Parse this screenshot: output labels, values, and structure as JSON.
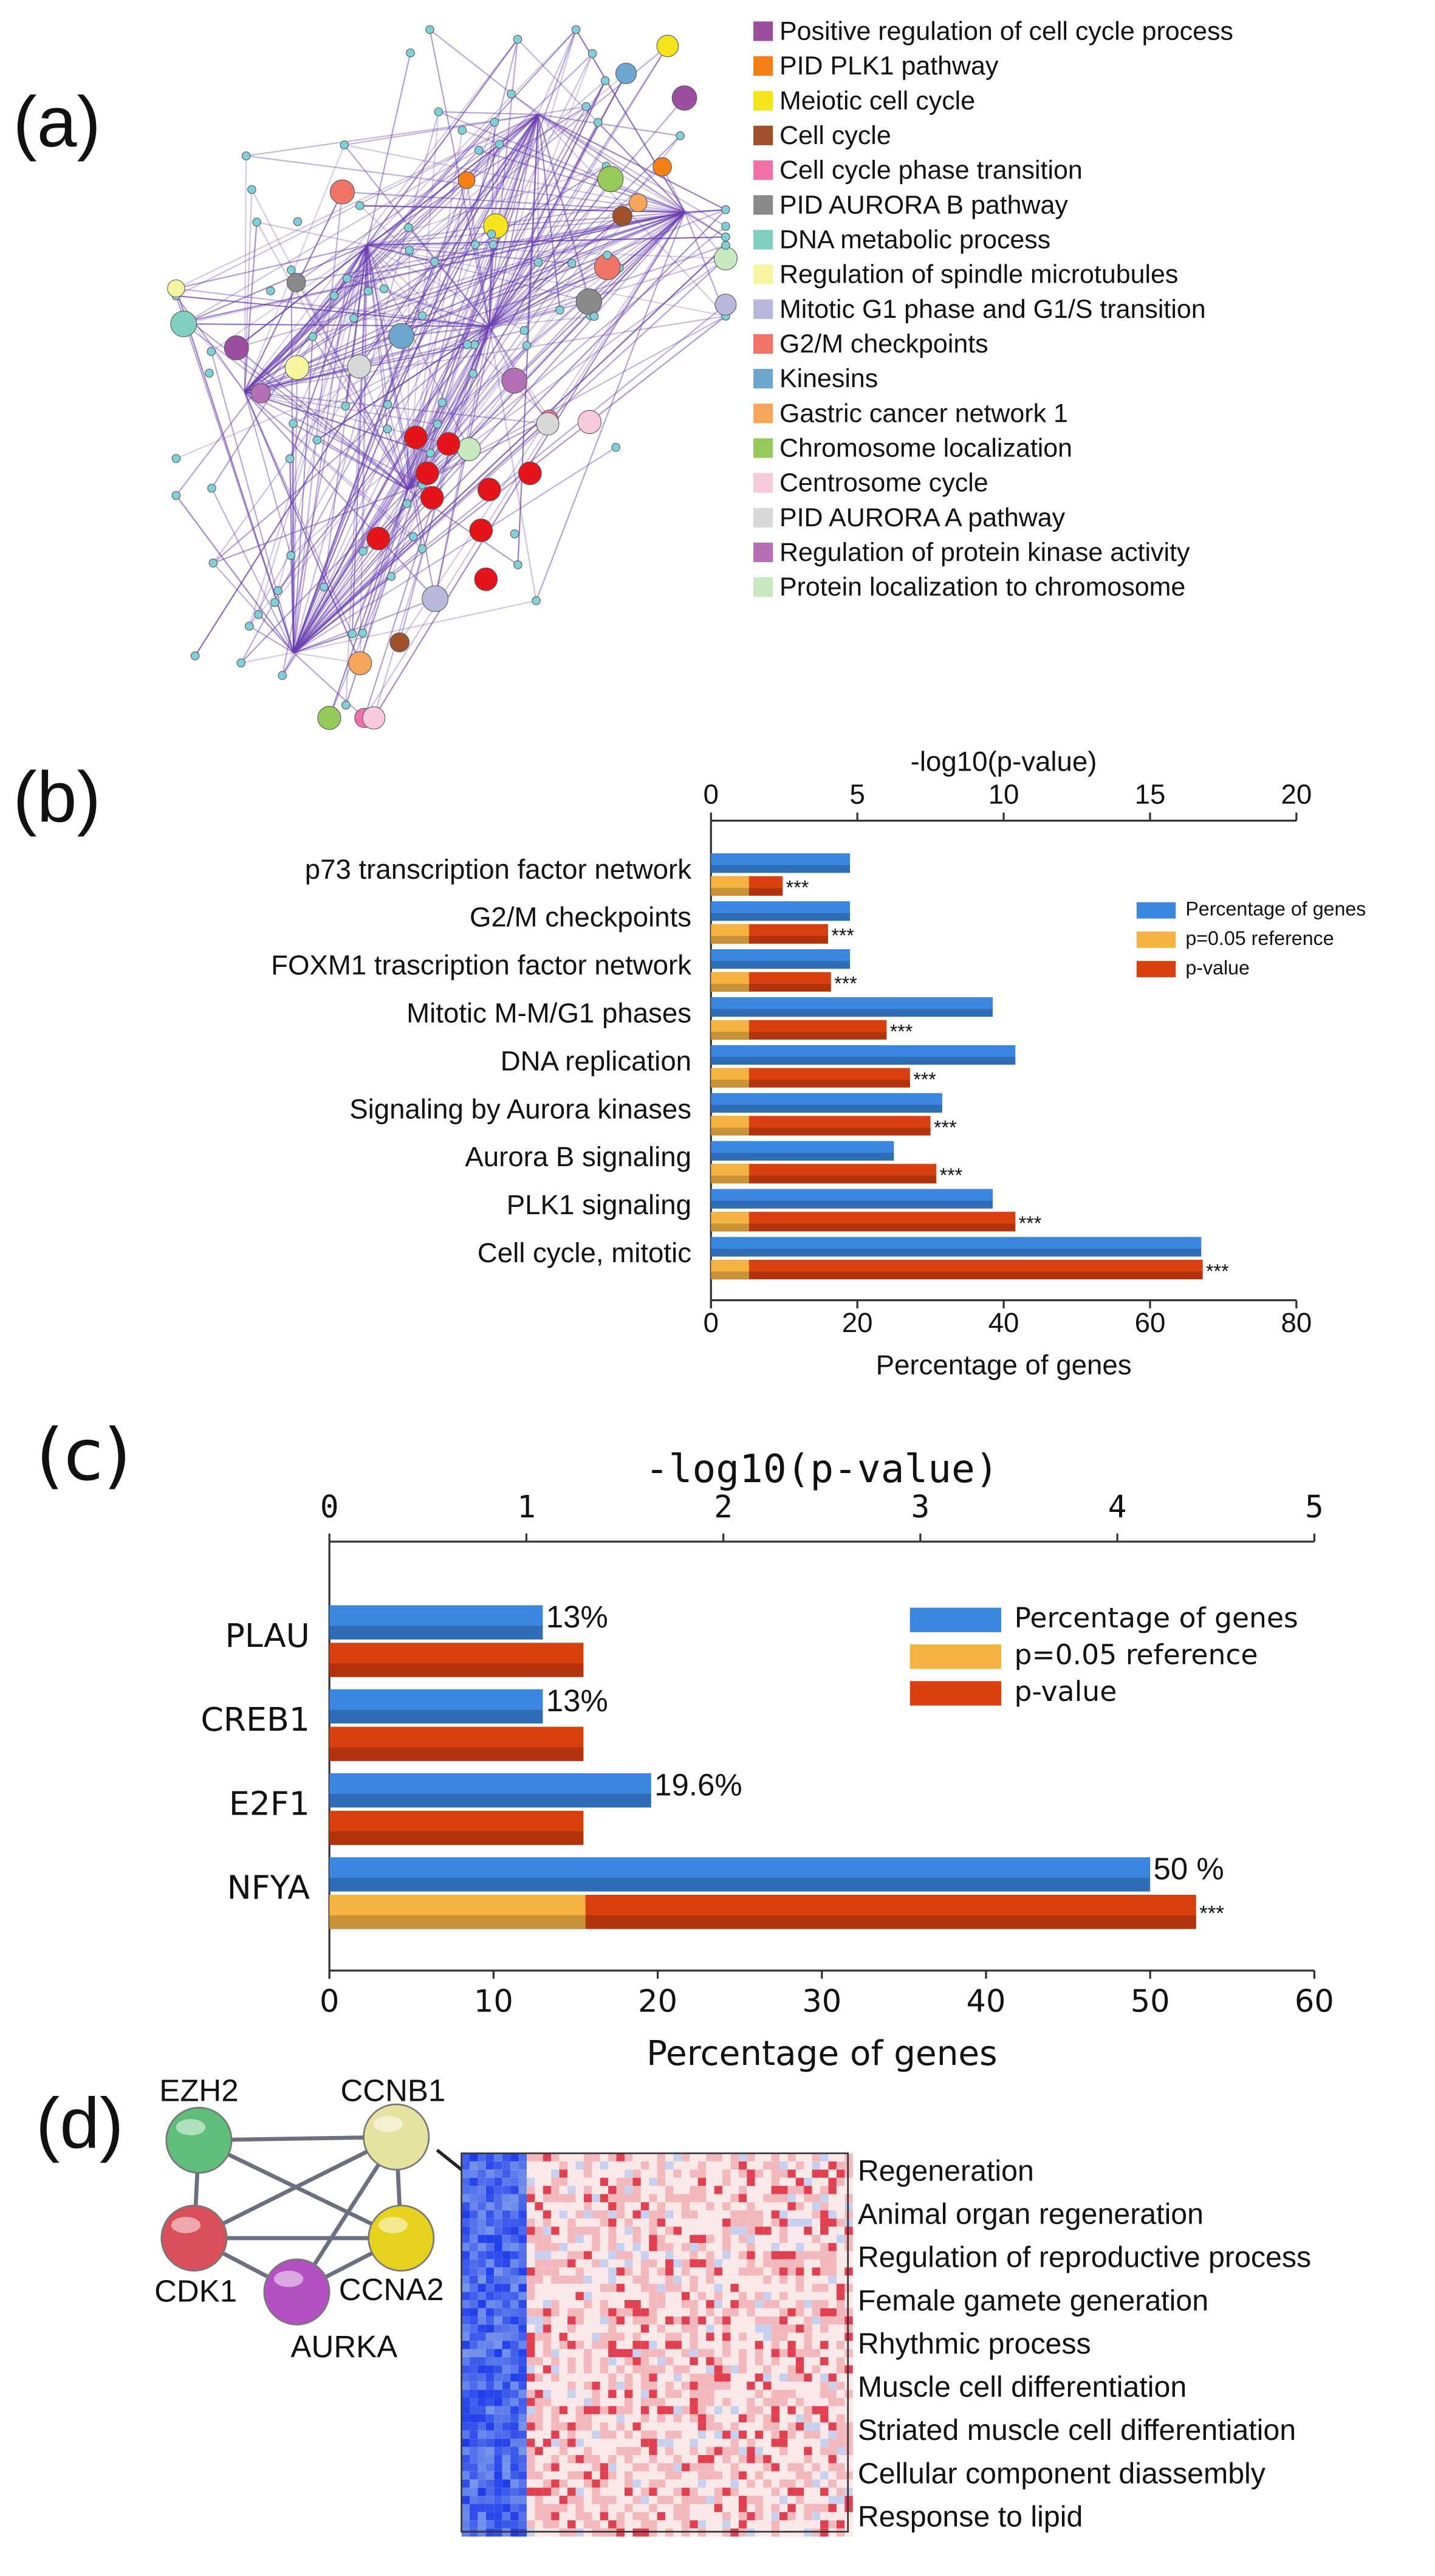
{
  "chart_data": [
    {
      "type": "network",
      "panel": "(a)",
      "legend": [
        {
          "name": "Positive regulation of cell cycle process",
          "color": "#9b4f9e"
        },
        {
          "name": "PID PLK1 pathway",
          "color": "#f57f17"
        },
        {
          "name": "Meiotic cell cycle",
          "color": "#f5e41b"
        },
        {
          "name": "Cell cycle",
          "color": "#a0522d"
        },
        {
          "name": "Cell cycle phase transition",
          "color": "#f070a8"
        },
        {
          "name": "PID AURORA B pathway",
          "color": "#8a8a8a"
        },
        {
          "name": "DNA metabolic process",
          "color": "#7fcfc0"
        },
        {
          "name": "Regulation of spindle microtubules",
          "color": "#f8f5a0"
        },
        {
          "name": "Mitotic G1 phase and G1/S transition",
          "color": "#b8b8dd"
        },
        {
          "name": "G2/M checkpoints",
          "color": "#f07468"
        },
        {
          "name": "Kinesins",
          "color": "#6fa6cf"
        },
        {
          "name": "Gastric cancer network 1",
          "color": "#f5a65b"
        },
        {
          "name": "Chromosome localization",
          "color": "#96c95a"
        },
        {
          "name": "Centrosome cycle",
          "color": "#f8c8dc"
        },
        {
          "name": "PID AURORA A pathway",
          "color": "#d8d8d8"
        },
        {
          "name": "Regulation of protein kinase activity",
          "color": "#b46fb5"
        },
        {
          "name": "Protein localization to chromosome",
          "color": "#c8e8c0"
        }
      ]
    },
    {
      "type": "hbar",
      "panel": "(b)",
      "categories": [
        "p73 transcription factor network",
        "G2/M checkpoints",
        "FOXM1 trascription factor network",
        "Mitotic M-M/G1 phases",
        "DNA replication",
        "Signaling by Aurora kinases",
        "Aurora B signaling",
        "PLK1 signaling",
        "Cell cycle, mitotic"
      ],
      "xlabel": "Percentage of genes",
      "xlim": [
        0,
        80
      ],
      "xticks": [
        0,
        20,
        40,
        60,
        80
      ],
      "x2label": "-log10(p-value)",
      "x2lim": [
        0,
        20
      ],
      "x2ticks": [
        0,
        5,
        10,
        15,
        20
      ],
      "series": [
        {
          "name": "Percentage of genes",
          "color": "#3a86e0",
          "values": [
            19,
            19,
            19,
            38.5,
            41.6,
            31.6,
            25,
            38.5,
            67
          ]
        },
        {
          "name": "p=0.05 reference",
          "color": "#f5b342",
          "axis": "x2",
          "values": [
            1.3,
            1.3,
            1.3,
            1.3,
            1.3,
            1.3,
            1.3,
            1.3,
            1.3
          ]
        },
        {
          "name": "p-value",
          "color": "#d9400f",
          "axis": "x2",
          "values": [
            2.45,
            4.0,
            4.1,
            6.0,
            6.8,
            7.5,
            7.7,
            10.4,
            16.8
          ],
          "annotations": [
            "***",
            "***",
            "***",
            "***",
            "***",
            "***",
            "***",
            "***",
            "***"
          ]
        }
      ],
      "legend": "right"
    },
    {
      "type": "hbar",
      "panel": "(c)",
      "categories": [
        "PLAU",
        "CREB1",
        "E2F1",
        "NFYA"
      ],
      "xlabel": "Percentage of genes",
      "xlim": [
        0,
        60
      ],
      "xticks": [
        0,
        10,
        20,
        30,
        40,
        50,
        60
      ],
      "x2label": "-log10(p-value)",
      "x2lim": [
        0,
        5
      ],
      "x2ticks": [
        0,
        1,
        2,
        3,
        4,
        5
      ],
      "series": [
        {
          "name": "Percentage of genes",
          "color": "#3a86e0",
          "values": [
            13,
            13,
            19.6,
            50
          ],
          "value_labels": [
            "13%",
            "13%",
            "19.6%",
            "50 %"
          ]
        },
        {
          "name": "p=0.05 reference",
          "color": "#f5b342",
          "axis": "x2",
          "values": [
            null,
            null,
            null,
            1.3
          ]
        },
        {
          "name": "p-value",
          "color": "#d9400f",
          "axis": "x2",
          "values": [
            1.29,
            1.29,
            1.29,
            4.4
          ],
          "annotations": [
            null,
            null,
            null,
            "***"
          ]
        }
      ],
      "legend": "right"
    },
    {
      "type": "gene-network",
      "panel": "(d)",
      "nodes": [
        {
          "label": "EZH2",
          "color": "#5fbf7a"
        },
        {
          "label": "CCNB1",
          "color": "#e6e2a0"
        },
        {
          "label": "CDK1",
          "color": "#d9505a"
        },
        {
          "label": "CCNA2",
          "color": "#e6d21e"
        },
        {
          "label": "AURKA",
          "color": "#b44fc4"
        }
      ],
      "terms": [
        "Regeneration",
        "Animal organ regeneration",
        "Regulation of reproductive process",
        "Female gamete generation",
        "Rhythmic process",
        "Muscle cell differentiation",
        "Striated muscle cell differentiation",
        "Cellular component diassembly",
        "Response to lipid"
      ]
    }
  ]
}
